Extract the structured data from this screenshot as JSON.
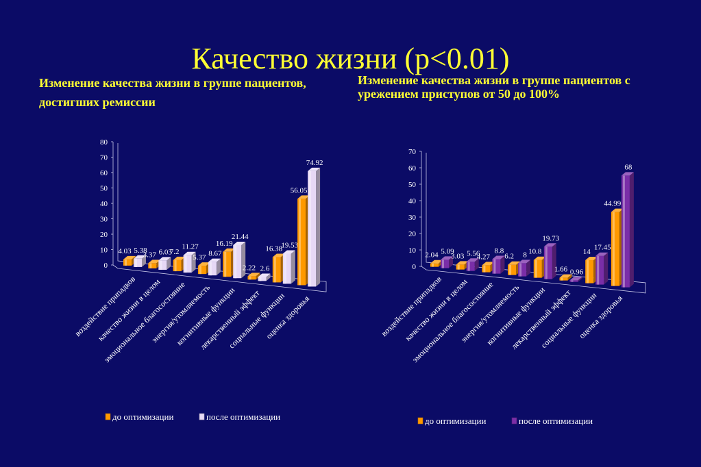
{
  "title": "Качество жизни (p<0.01)",
  "subtitle_left": "Изменение качества жизни в группе пациентов, достигших ремиссии",
  "subtitle_right": "Изменение качества жизни в группе пациентов с урежением приступов от 50 до 100%",
  "colors": {
    "background": "#0b0b66",
    "title": "#ffff33",
    "orange": "#ff9900",
    "lavender": "#e6d8f5",
    "purple": "#7a2ea8"
  },
  "chart_data": [
    {
      "type": "bar",
      "style": "3d-clustered",
      "categories": [
        "воздействие припадков",
        "качество жизни в целом",
        "эмоциональное благосостояние",
        "энергия/утомляемость",
        "когнитивные функции",
        "лекарственный эффект",
        "социальные функции",
        "оценка здоровья"
      ],
      "series": [
        {
          "name": "до оптимизации",
          "values": [
            4.03,
            3.37,
            7.2,
            5.37,
            16.19,
            2.22,
            16.38,
            56.05
          ],
          "labels": [
            "4.03",
            "3.37",
            "7.2",
            "5.37",
            "16.19",
            "2.22",
            "16.38",
            "56.05"
          ],
          "color": "#ff9900"
        },
        {
          "name": "после оптимизации",
          "values": [
            5.38,
            6.03,
            11.27,
            8.67,
            21.44,
            2.6,
            19.53,
            74.92
          ],
          "labels": [
            "5.38",
            "6.03",
            "11.27",
            "8.67",
            "21.44",
            "2.6",
            "19.53",
            "74.92"
          ],
          "color": "#e6d8f5"
        }
      ],
      "ylim": [
        0,
        80
      ],
      "yticks": [
        "0",
        "10",
        "20",
        "30",
        "40",
        "50",
        "60",
        "70",
        "80"
      ],
      "legend": "bottom"
    },
    {
      "type": "bar",
      "style": "3d-clustered",
      "categories": [
        "воздействие припадков",
        "качество жизни в целом",
        "эмоциональное благосостояние",
        "энергия/утомляемость",
        "когнитивные функции",
        "лекарственный эффект",
        "социальные функции",
        "оценка здоровья"
      ],
      "series": [
        {
          "name": "до оптимизации",
          "values": [
            2.04,
            3.03,
            4.27,
            6.2,
            10.8,
            1.66,
            14,
            44.99
          ],
          "labels": [
            "2.04",
            "3.03",
            "4.27",
            "6.2",
            "10.8",
            "1.66",
            "14",
            "44.99"
          ],
          "color": "#ff9900"
        },
        {
          "name": "после оптимизации",
          "values": [
            5.09,
            5.56,
            8.8,
            8,
            19.73,
            0.96,
            17.45,
            68
          ],
          "labels": [
            "5.09",
            "5.56",
            "8.8",
            "8",
            "19.73",
            "0.96",
            "17.45",
            "68"
          ],
          "color": "#7a2ea8"
        }
      ],
      "ylim": [
        0,
        70
      ],
      "yticks": [
        "0",
        "10",
        "20",
        "30",
        "40",
        "50",
        "60",
        "70"
      ],
      "legend": "bottom"
    }
  ]
}
